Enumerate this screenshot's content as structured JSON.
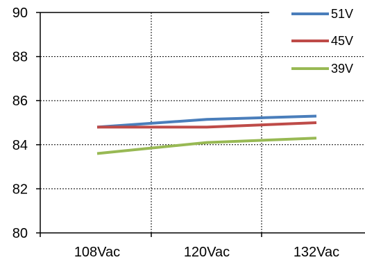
{
  "chart_data": {
    "type": "line",
    "categories": [
      "108Vac",
      "120Vac",
      "132Vac"
    ],
    "series": [
      {
        "name": "51V",
        "values": [
          84.8,
          85.15,
          85.3
        ],
        "color": "#4a7ebb"
      },
      {
        "name": "45V",
        "values": [
          84.8,
          84.8,
          85.0
        ],
        "color": "#be4b48"
      },
      {
        "name": "39V",
        "values": [
          83.6,
          84.1,
          84.3
        ],
        "color": "#98b954"
      }
    ],
    "ylim": [
      80,
      90
    ],
    "yticks": [
      "80",
      "82",
      "84",
      "86",
      "88",
      "90"
    ],
    "grid": {
      "horizontal": "dashed",
      "vertical": "dashed"
    },
    "legend_position": "top-right"
  }
}
